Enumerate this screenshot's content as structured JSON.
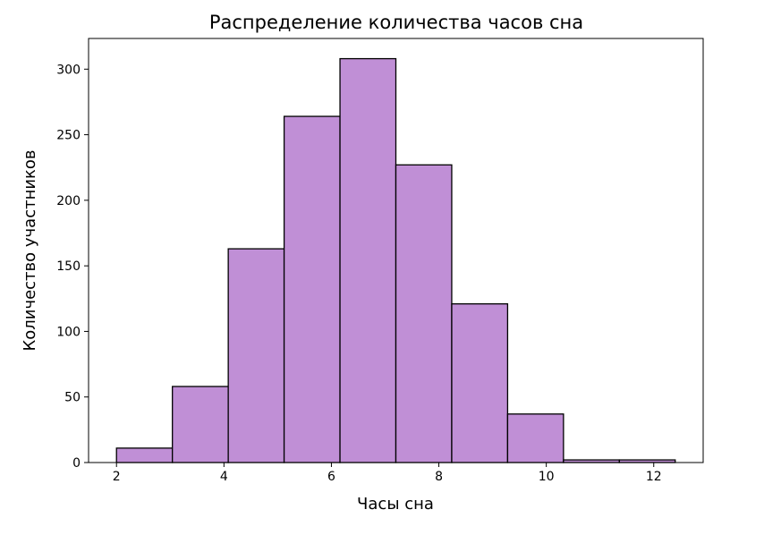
{
  "chart_data": {
    "type": "bar",
    "title": "Распределение количества часов сна",
    "xlabel": "Часы сна",
    "ylabel": "Количество участников",
    "bins": [
      {
        "start": 2.0,
        "end": 3.04,
        "value": 11
      },
      {
        "start": 3.04,
        "end": 4.08,
        "value": 58
      },
      {
        "start": 4.08,
        "end": 5.12,
        "value": 163
      },
      {
        "start": 5.12,
        "end": 6.16,
        "value": 264
      },
      {
        "start": 6.16,
        "end": 7.2,
        "value": 308
      },
      {
        "start": 7.2,
        "end": 8.24,
        "value": 227
      },
      {
        "start": 8.24,
        "end": 9.28,
        "value": 121
      },
      {
        "start": 9.28,
        "end": 10.32,
        "value": 37
      },
      {
        "start": 10.32,
        "end": 11.36,
        "value": 2
      },
      {
        "start": 11.36,
        "end": 12.4,
        "value": 2
      }
    ],
    "xlim": [
      1.48,
      12.92
    ],
    "ylim": [
      0,
      323.4
    ],
    "x_ticks": [
      "2",
      "4",
      "6",
      "8",
      "10",
      "12"
    ],
    "y_ticks": [
      "0",
      "50",
      "100",
      "150",
      "200",
      "250",
      "300"
    ],
    "grid": false,
    "legend": "none",
    "colors": {
      "bar_fill": "#c08fd6",
      "bar_edge": "#000000",
      "axis": "#000000"
    }
  }
}
